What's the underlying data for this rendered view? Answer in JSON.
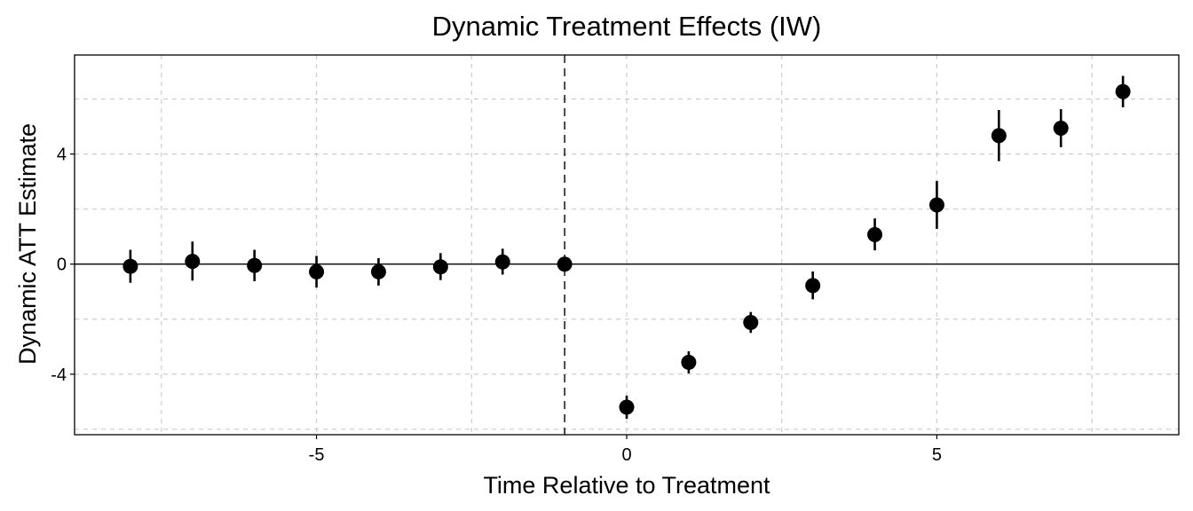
{
  "chart_data": {
    "type": "scatter",
    "title": "Dynamic Treatment Effects (IW)",
    "xlabel": "Time Relative to Treatment",
    "ylabel": "Dynamic ATT Estimate",
    "xlim": [
      -8.9,
      8.9
    ],
    "ylim": [
      -6.2,
      7.6
    ],
    "xticks": [
      -5,
      0,
      5
    ],
    "xtick_labels": [
      "-5",
      "0",
      "5"
    ],
    "yticks": [
      -4,
      0,
      4
    ],
    "ytick_labels": [
      "-4",
      "0",
      "4"
    ],
    "x_gridlines": [
      -7.5,
      -5,
      -2.5,
      0,
      2.5,
      5,
      7.5
    ],
    "y_gridlines": [
      -6,
      -4,
      -2,
      0,
      2,
      4,
      6
    ],
    "grid": true,
    "reference_vline": -1,
    "reference_hline": 0,
    "series": [
      {
        "x": [
          -8,
          -7,
          -6,
          -5,
          -4,
          -3,
          -2,
          -1,
          0,
          1,
          2,
          3,
          4,
          5,
          6,
          7,
          8
        ],
        "y": [
          -0.08,
          0.1,
          -0.05,
          -0.28,
          -0.28,
          -0.1,
          0.08,
          0.0,
          -5.2,
          -3.57,
          -2.12,
          -0.78,
          1.07,
          2.15,
          4.67,
          4.94,
          6.27
        ],
        "ci_low": [
          -0.68,
          -0.6,
          -0.62,
          -0.85,
          -0.78,
          -0.58,
          -0.38,
          0.0,
          -5.62,
          -3.97,
          -2.5,
          -1.28,
          0.5,
          1.28,
          3.74,
          4.25,
          5.7
        ],
        "ci_high": [
          0.52,
          0.82,
          0.52,
          0.3,
          0.22,
          0.4,
          0.56,
          0.0,
          -4.78,
          -3.17,
          -1.74,
          -0.27,
          1.66,
          3.02,
          5.6,
          5.63,
          6.84
        ]
      }
    ],
    "colors": {
      "points": "#000000",
      "grid": "#cccccc",
      "frame": "#000000"
    }
  }
}
